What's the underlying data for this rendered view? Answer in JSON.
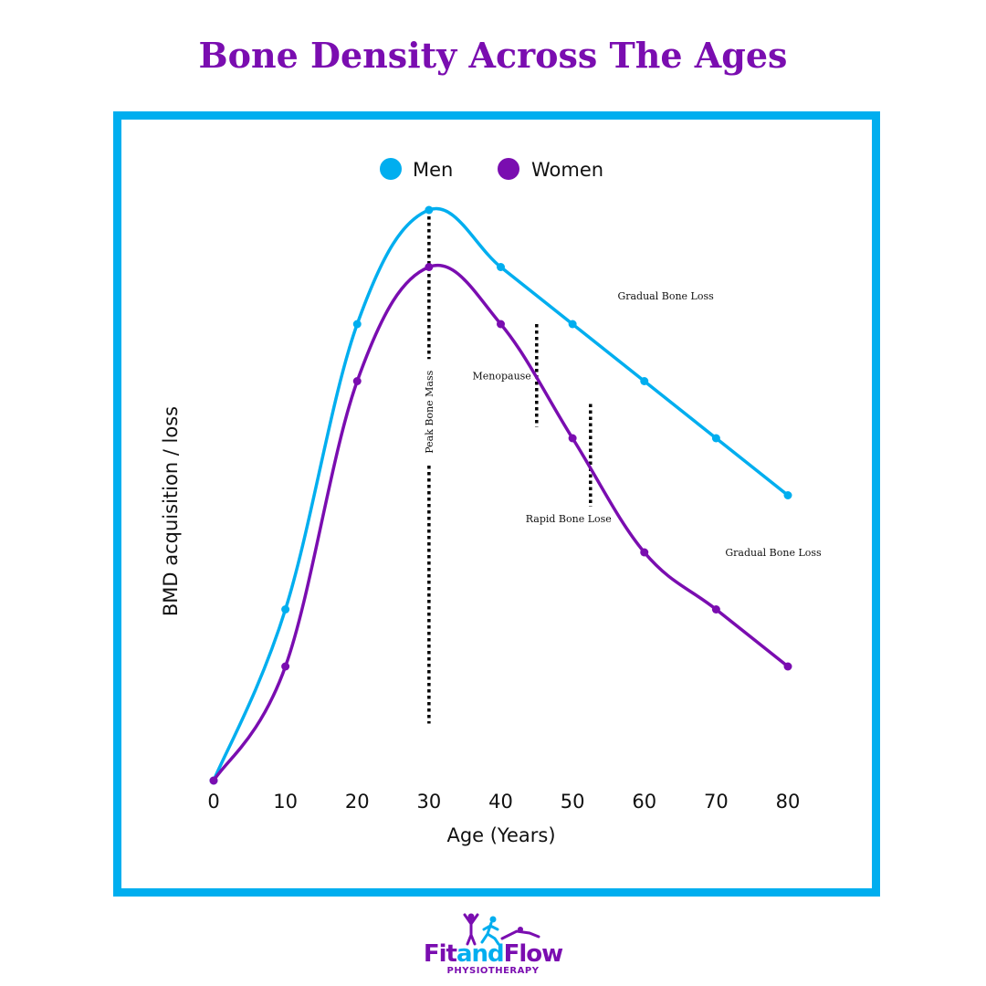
{
  "title": "Bone Density Across The Ages",
  "brand": {
    "name_part1": "Fit",
    "name_part2": "and",
    "name_part3": "Flow",
    "tagline": "PHYSIOTHERAPY",
    "colors": {
      "blue": "#00aeef",
      "purple": "#7a0db0"
    }
  },
  "chart_data": {
    "type": "line",
    "title": "Bone Density Across The Ages",
    "xlabel": "Age (Years)",
    "ylabel": "BMD acquisition / loss",
    "x": [
      0,
      10,
      20,
      30,
      40,
      50,
      60,
      70,
      80
    ],
    "xlim": [
      0,
      80
    ],
    "ylim": [
      0,
      10
    ],
    "x_tick_labels": [
      "0",
      "10",
      "20",
      "30",
      "40",
      "50",
      "60",
      "70",
      "80"
    ],
    "grid": false,
    "legend_position": "top-center",
    "series": [
      {
        "name": "Men",
        "color": "#00aeef",
        "values": [
          0,
          3,
          8,
          10,
          9,
          8,
          7,
          6,
          5
        ]
      },
      {
        "name": "Women",
        "color": "#7a0db0",
        "values": [
          0,
          2,
          7,
          9,
          8,
          6,
          4,
          3,
          2
        ]
      }
    ],
    "annotations": [
      {
        "text": "Peak Bone Mass",
        "x": 30,
        "y_top": 10,
        "y_bottom": 1,
        "orientation": "vertical"
      },
      {
        "text": "Menopause",
        "x": 45,
        "y_top": 8.0,
        "y_bottom": 6.2,
        "side": "left"
      },
      {
        "text": "Rapid Bone Lose",
        "x": 52.5,
        "y_top": 6.6,
        "y_bottom": 4.8,
        "side": "below"
      },
      {
        "text": "Gradual Bone Loss",
        "x": 55,
        "y": 8.5
      },
      {
        "text": "Gradual Bone Loss",
        "x": 70,
        "y": 4
      }
    ]
  }
}
